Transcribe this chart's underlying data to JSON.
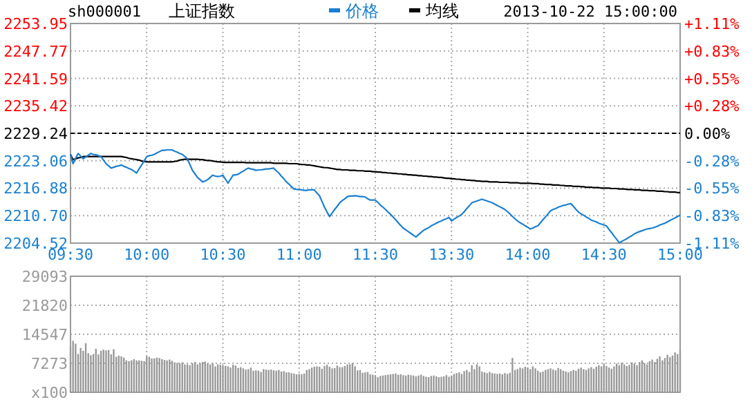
{
  "chart_data": [
    {
      "type": "line",
      "title": "上证指数",
      "subtitle": "2013-10-22 15:00:00",
      "annotations": [
        "sh000001"
      ],
      "legend": "top",
      "grid": true,
      "categories": [
        "09:30",
        null,
        null,
        null,
        null,
        null,
        null,
        null,
        null,
        null,
        null,
        null,
        null,
        null,
        null,
        null,
        null,
        null,
        null,
        null,
        null,
        null,
        null,
        null,
        null,
        null,
        null,
        null,
        null,
        null,
        "10:00",
        null,
        null,
        null,
        null,
        null,
        null,
        null,
        null,
        null,
        null,
        null,
        null,
        null,
        null,
        null,
        null,
        null,
        null,
        null,
        null,
        null,
        null,
        null,
        null,
        null,
        null,
        null,
        null,
        null,
        "10:30",
        null,
        null,
        null,
        null,
        null,
        null,
        null,
        null,
        null,
        null,
        null,
        null,
        null,
        null,
        null,
        null,
        null,
        null,
        null,
        null,
        null,
        null,
        null,
        null,
        null,
        null,
        null,
        null,
        null,
        "11:00",
        null,
        null,
        null,
        null,
        null,
        null,
        null,
        null,
        null,
        null,
        null,
        null,
        null,
        null,
        null,
        null,
        null,
        null,
        null,
        null,
        null,
        null,
        null,
        null,
        null,
        null,
        null,
        null,
        null,
        "11:30",
        null,
        null,
        null,
        null,
        null,
        null,
        null,
        null,
        null,
        null,
        null,
        null,
        null,
        null,
        null,
        null,
        null,
        null,
        null,
        null,
        null,
        null,
        null,
        null,
        null,
        null,
        null,
        null,
        null,
        "13:30",
        null,
        null,
        null,
        null,
        null,
        null,
        null,
        null,
        null,
        null,
        null,
        null,
        null,
        null,
        null,
        null,
        null,
        null,
        null,
        null,
        null,
        null,
        null,
        null,
        null,
        null,
        null,
        null,
        null,
        "14:00",
        null,
        null,
        null,
        null,
        null,
        null,
        null,
        null,
        null,
        null,
        null,
        null,
        null,
        null,
        null,
        null,
        null,
        null,
        null,
        null,
        null,
        null,
        null,
        null,
        null,
        null,
        null,
        null,
        null,
        "14:30",
        null,
        null,
        null,
        null,
        null,
        null,
        null,
        null,
        null,
        null,
        null,
        null,
        null,
        null,
        null,
        null,
        null,
        null,
        null,
        null,
        null,
        null,
        null,
        null,
        null,
        null,
        null,
        null,
        null,
        "15:00"
      ],
      "ylim": [
        2204.52,
        2253.95
      ],
      "yticks": [
        2204.52,
        {
          "value": 2210.7,
          "label": "2210.70"
        },
        2216.88,
        2223.06,
        2229.24,
        2235.42,
        2241.59,
        2247.77,
        2253.95
      ],
      "y2lim": [
        -1.11,
        1.11
      ],
      "y2ticks": [
        {
          "value": -1.11,
          "label": "-1.11%"
        },
        {
          "value": -0.83,
          "label": "-0.83%"
        },
        {
          "value": -0.55,
          "label": "-0.55%"
        },
        {
          "value": -0.28,
          "label": "-0.28%"
        },
        {
          "value": 0,
          "label": "0.00%"
        },
        {
          "value": 0.28,
          "label": "+0.28%"
        },
        {
          "value": 0.55,
          "label": "+0.55%"
        },
        {
          "value": 0.83,
          "label": "+0.83%"
        },
        {
          "value": 1.11,
          "label": "+1.11%"
        }
      ],
      "ref_lines": [
        {
          "axis": "y",
          "value": 2229.24,
          "color": "#000000",
          "line_style": "dashed"
        }
      ],
      "series": [
        {
          "name": "价格",
          "color": "#1a7fd0",
          "values": [
            2224.5,
            2222.4,
            2223.6,
            2224.7,
            2224.1,
            2223.5,
            2223.9,
            2224.3,
            2224.7,
            2224.5,
            2224.4,
            2224.2,
            2224.0,
            2223.2,
            2222.4,
            2221.9,
            2221.4,
            2221.6,
            2221.8,
            2221.9,
            2222.1,
            2221.8,
            2221.6,
            2221.3,
            2221.1,
            2220.7,
            2220.3,
            2221.2,
            2222.1,
            2223.0,
            2224.0,
            2224.2,
            2224.3,
            2224.5,
            2224.8,
            2225.1,
            2225.4,
            2225.4,
            2225.5,
            2225.5,
            2225.5,
            2225.2,
            2225.0,
            2224.7,
            2224.5,
            2224.0,
            2223.5,
            2222.2,
            2220.9,
            2220.1,
            2219.3,
            2218.8,
            2218.3,
            2218.5,
            2218.8,
            2219.3,
            2219.8,
            2219.6,
            2219.5,
            2219.6,
            2219.8,
            2218.9,
            2218.0,
            2218.9,
            2219.8,
            2219.9,
            2220.0,
            2220.4,
            2220.7,
            2221.1,
            2221.4,
            2221.2,
            2221.1,
            2220.9,
            2221.0,
            2221.0,
            2221.1,
            2221.2,
            2221.2,
            2221.3,
            2221.4,
            2220.8,
            2220.3,
            2219.6,
            2219.0,
            2218.3,
            2217.8,
            2217.2,
            2216.7,
            2216.6,
            2216.6,
            2216.5,
            2216.4,
            2216.4,
            2216.5,
            2216.5,
            2216.5,
            2215.8,
            2215.2,
            2213.9,
            2212.6,
            2211.5,
            2210.5,
            2211.3,
            2212.1,
            2212.8,
            2213.6,
            2214.1,
            2214.5,
            2215.0,
            2215.1,
            2215.1,
            2215.2,
            2215.1,
            2215.0,
            2215.0,
            2214.9,
            2214.5,
            2214.2,
            2214.2,
            2214.2,
            2213.7,
            2213.1,
            2212.6,
            2212.1,
            2211.5,
            2211.0,
            2210.4,
            2209.8,
            2209.1,
            2208.5,
            2207.9,
            2207.5,
            2207.1,
            2206.7,
            2206.3,
            2205.9,
            2206.4,
            2206.9,
            2207.4,
            2207.7,
            2208.0,
            2208.4,
            2208.7,
            2209.0,
            2209.3,
            2209.5,
            2209.8,
            2210.0,
            2210.3,
            2209.5,
            2209.9,
            2210.3,
            2210.6,
            2211.0,
            2211.6,
            2212.3,
            2212.9,
            2213.6,
            2213.8,
            2214.0,
            2214.2,
            2214.4,
            2214.2,
            2214.0,
            2213.8,
            2213.6,
            2213.3,
            2213.0,
            2212.7,
            2212.4,
            2212.1,
            2211.6,
            2211.1,
            2210.5,
            2210.0,
            2209.5,
            2209.1,
            2208.8,
            2208.4,
            2208.1,
            2207.7,
            2207.9,
            2208.2,
            2208.4,
            2209.1,
            2209.8,
            2210.4,
            2211.1,
            2211.8,
            2212.1,
            2212.3,
            2212.6,
            2212.8,
            2213.0,
            2213.1,
            2213.3,
            2213.4,
            2212.8,
            2212.1,
            2211.5,
            2211.1,
            2210.8,
            2210.4,
            2210.1,
            2209.7,
            2209.5,
            2209.3,
            2209.0,
            2208.8,
            2208.6,
            2208.4,
            2207.6,
            2206.9,
            2206.1,
            2205.4,
            2204.6,
            2204.9,
            2205.2,
            2205.5,
            2205.9,
            2206.2,
            2206.6,
            2206.9,
            2207.1,
            2207.3,
            2207.5,
            2207.7,
            2207.8,
            2207.9,
            2208.1,
            2208.3,
            2208.6,
            2208.8,
            2209.0,
            2209.3,
            2209.6,
            2209.9,
            2210.2,
            2210.5,
            2210.8
          ]
        },
        {
          "name": "均线",
          "color": "#000000",
          "values": [
            2224.5,
            2223.3,
            2223.5,
            2223.7,
            2223.8,
            2224.0,
            2224.0,
            2224.0,
            2224.0,
            2224.0,
            2224.0,
            2224.0,
            2224.0,
            2224.0,
            2224.0,
            2224.0,
            2224.0,
            2224.0,
            2224.0,
            2224.0,
            2224.0,
            2223.9,
            2223.8,
            2223.6,
            2223.5,
            2223.4,
            2223.3,
            2223.2,
            2223.0,
            2222.9,
            2222.8,
            2222.8,
            2222.8,
            2222.8,
            2222.8,
            2222.8,
            2222.8,
            2222.8,
            2222.8,
            2222.8,
            2222.8,
            2222.9,
            2223.0,
            2223.2,
            2223.3,
            2223.4,
            2223.4,
            2223.4,
            2223.4,
            2223.4,
            2223.4,
            2223.3,
            2223.3,
            2223.2,
            2223.1,
            2223.1,
            2223.0,
            2222.9,
            2222.8,
            2222.8,
            2222.7,
            2222.7,
            2222.7,
            2222.7,
            2222.7,
            2222.7,
            2222.7,
            2222.7,
            2222.7,
            2222.6,
            2222.6,
            2222.6,
            2222.6,
            2222.6,
            2222.6,
            2222.6,
            2222.6,
            2222.6,
            2222.6,
            2222.6,
            2222.5,
            2222.5,
            2222.5,
            2222.5,
            2222.5,
            2222.5,
            2222.4,
            2222.4,
            2222.4,
            2222.4,
            2222.3,
            2222.2,
            2222.2,
            2222.1,
            2222.1,
            2222.0,
            2221.9,
            2221.8,
            2221.7,
            2221.6,
            2221.5,
            2221.5,
            2221.4,
            2221.3,
            2221.2,
            2221.1,
            2221.1,
            2221.0,
            2221.0,
            2221.0,
            2220.9,
            2220.9,
            2220.9,
            2220.8,
            2220.8,
            2220.8,
            2220.7,
            2220.7,
            2220.7,
            2220.6,
            2220.6,
            2220.5,
            2220.5,
            2220.4,
            2220.4,
            2220.3,
            2220.3,
            2220.2,
            2220.2,
            2220.1,
            2220.1,
            2220.0,
            2220.0,
            2219.9,
            2219.9,
            2219.8,
            2219.8,
            2219.7,
            2219.7,
            2219.6,
            2219.6,
            2219.5,
            2219.5,
            2219.4,
            2219.4,
            2219.3,
            2219.3,
            2219.2,
            2219.1,
            2219.1,
            2219.0,
            2219.0,
            2218.9,
            2218.9,
            2218.8,
            2218.8,
            2218.7,
            2218.7,
            2218.6,
            2218.6,
            2218.5,
            2218.5,
            2218.4,
            2218.4,
            2218.4,
            2218.3,
            2218.3,
            2218.3,
            2218.3,
            2218.2,
            2218.2,
            2218.2,
            2218.2,
            2218.1,
            2218.1,
            2218.1,
            2218.1,
            2218.0,
            2218.0,
            2218.0,
            2218.0,
            2218.0,
            2217.9,
            2217.9,
            2217.9,
            2217.8,
            2217.8,
            2217.7,
            2217.7,
            2217.7,
            2217.6,
            2217.6,
            2217.6,
            2217.5,
            2217.5,
            2217.4,
            2217.4,
            2217.4,
            2217.3,
            2217.3,
            2217.3,
            2217.2,
            2217.2,
            2217.1,
            2217.1,
            2217.1,
            2217.0,
            2217.0,
            2217.0,
            2216.9,
            2216.9,
            2216.9,
            2216.9,
            2216.8,
            2216.8,
            2216.8,
            2216.7,
            2216.7,
            2216.7,
            2216.6,
            2216.6,
            2216.6,
            2216.5,
            2216.5,
            2216.5,
            2216.4,
            2216.4,
            2216.4,
            2216.3,
            2216.3,
            2216.3,
            2216.2,
            2216.2,
            2216.2,
            2216.1,
            2216.1,
            2216.0,
            2216.0,
            2216.0,
            2215.9,
            2215.9
          ]
        }
      ]
    },
    {
      "type": "bar",
      "color": "#999999",
      "grid": true,
      "tick_labels": "y",
      "ylim": [
        0,
        29093
      ],
      "yticks": [
        {
          "value": 0,
          "label": "x100"
        },
        7273,
        14547,
        21820,
        29093
      ],
      "categories": [
        null,
        null,
        null,
        null,
        null,
        null,
        null,
        null,
        null,
        null,
        null,
        null,
        null,
        null,
        null,
        null,
        null,
        null,
        null,
        null,
        null,
        null,
        null,
        null,
        null,
        null,
        null,
        null,
        null,
        null,
        null,
        null,
        null,
        null,
        null,
        null,
        null,
        null,
        null,
        null,
        null,
        null,
        null,
        null,
        null,
        null,
        null,
        null,
        null,
        null,
        null,
        null,
        null,
        null,
        null,
        null,
        null,
        null,
        null,
        null,
        null,
        null,
        null,
        null,
        null,
        null,
        null,
        null,
        null,
        null,
        null,
        null,
        null,
        null,
        null,
        null,
        null,
        null,
        null,
        null,
        null,
        null,
        null,
        null,
        null,
        null,
        null,
        null,
        null,
        null,
        null,
        null,
        null,
        null,
        null,
        null,
        null,
        null,
        null,
        null,
        null,
        null,
        null,
        null,
        null,
        null,
        null,
        null,
        null,
        null,
        null,
        null,
        null,
        null,
        null,
        null,
        null,
        null,
        null,
        null,
        null,
        null,
        null,
        null,
        null,
        null,
        null,
        null,
        null,
        null,
        null,
        null,
        null,
        null,
        null,
        null,
        null,
        null,
        null,
        null,
        null,
        null,
        null,
        null,
        null,
        null,
        null,
        null,
        null,
        null,
        null,
        null,
        null,
        null,
        null,
        null,
        null,
        null,
        null,
        null,
        null,
        null,
        null,
        null,
        null,
        null,
        null,
        null,
        null,
        null,
        null,
        null,
        null,
        null,
        null,
        null,
        null,
        null,
        null,
        null,
        null,
        null,
        null,
        null,
        null,
        null,
        null,
        null,
        null,
        null,
        null,
        null,
        null,
        null,
        null,
        null,
        null,
        null,
        null,
        null,
        null,
        null,
        null,
        null,
        null,
        null,
        null,
        null,
        null,
        null,
        null,
        null,
        null,
        null,
        null,
        null,
        null,
        null,
        null,
        null,
        null,
        null,
        null,
        null,
        null,
        null,
        null,
        null,
        null,
        null,
        null,
        null,
        null,
        null,
        null,
        null,
        null,
        null,
        null,
        null,
        null
      ],
      "values": [
        11400,
        12900,
        12200,
        9600,
        11100,
        10400,
        12300,
        9800,
        9300,
        9600,
        10900,
        9500,
        10400,
        10700,
        10500,
        10600,
        9500,
        10800,
        8900,
        9200,
        9000,
        8700,
        8000,
        7800,
        8000,
        8300,
        8000,
        8000,
        7900,
        7800,
        9000,
        8900,
        8500,
        8500,
        8700,
        8600,
        8300,
        8100,
        8000,
        8200,
        7900,
        7500,
        7400,
        7200,
        7500,
        7000,
        7000,
        6800,
        7300,
        7600,
        7000,
        7300,
        7600,
        7700,
        7200,
        7000,
        7200,
        6500,
        7000,
        6900,
        6800,
        6600,
        6500,
        6200,
        6900,
        6700,
        6100,
        6300,
        6000,
        5700,
        5800,
        6200,
        5400,
        5500,
        5400,
        5100,
        5800,
        5700,
        5600,
        5700,
        5500,
        5400,
        5600,
        5200,
        5300,
        5000,
        5000,
        4800,
        4700,
        4500,
        4600,
        4500,
        4700,
        5600,
        5800,
        6200,
        6400,
        6500,
        6400,
        5900,
        6600,
        6900,
        6400,
        6000,
        6100,
        6700,
        6300,
        6300,
        6600,
        7000,
        7000,
        7300,
        6500,
        5500,
        5600,
        4900,
        5000,
        5100,
        4500,
        4400,
        4300,
        3800,
        4100,
        4200,
        4300,
        4400,
        4500,
        4600,
        4700,
        4400,
        4500,
        4300,
        4200,
        4400,
        4300,
        4200,
        4000,
        4200,
        4400,
        4100,
        3900,
        3800,
        4100,
        4200,
        4000,
        3800,
        3900,
        4000,
        4300,
        3900,
        4200,
        4600,
        4800,
        5000,
        4600,
        5300,
        5600,
        5100,
        6800,
        5800,
        7000,
        6500,
        5200,
        5000,
        4800,
        5100,
        4800,
        4700,
        4600,
        4700,
        4500,
        4800,
        4600,
        4900,
        8600,
        5600,
        5800,
        6200,
        6000,
        6400,
        6200,
        5800,
        6500,
        6000,
        5400,
        5000,
        5200,
        5600,
        5800,
        6000,
        5700,
        5500,
        6100,
        5800,
        5400,
        5200,
        5000,
        5300,
        5600,
        5400,
        5900,
        6200,
        5800,
        5600,
        6000,
        6300,
        5900,
        6400,
        6800,
        6500,
        7000,
        6600,
        6200,
        5900,
        6500,
        7200,
        6800,
        7400,
        7000,
        6600,
        6900,
        7500,
        7200,
        6800,
        7600,
        8000,
        7300,
        7000,
        7800,
        8200,
        7600,
        8400,
        9000,
        8000,
        8600,
        9400,
        8800,
        9200,
        10000,
        9600,
        10500
      ]
    }
  ]
}
